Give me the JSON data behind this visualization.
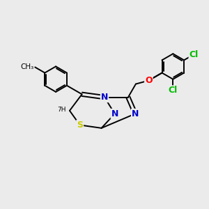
{
  "background_color": "#ebebeb",
  "atom_colors": {
    "C": "#000000",
    "N": "#0000cc",
    "S": "#cccc00",
    "O": "#ff0000",
    "Cl": "#00bb00",
    "H": "#000000"
  },
  "bond_color": "#000000",
  "lw": 1.4,
  "fs": 9
}
